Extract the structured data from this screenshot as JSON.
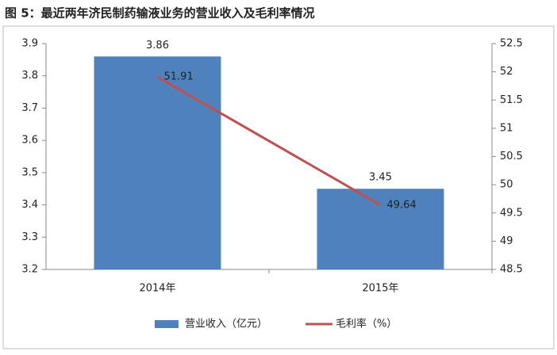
{
  "chart_data": {
    "type": "bar",
    "title": "图 5：最近两年济民制药输液业务的营业收入及毛利率情况",
    "categories": [
      "2014年",
      "2015年"
    ],
    "series": [
      {
        "name": "营业收入（亿元）",
        "type": "bar",
        "color": "#4f81bd",
        "values": [
          3.86,
          3.45
        ]
      },
      {
        "name": "毛利率（%）",
        "type": "line",
        "axis": "y2",
        "color": "#c0504d",
        "values": [
          51.91,
          49.64
        ]
      }
    ],
    "ylim": [
      3.2,
      3.9
    ],
    "yticks": [
      3.2,
      3.3,
      3.4,
      3.5,
      3.6,
      3.7,
      3.8,
      3.9
    ],
    "y2lim": [
      48.5,
      52.5
    ],
    "y2ticks": [
      48.5,
      49,
      49.5,
      50,
      50.5,
      51,
      51.5,
      52,
      52.5
    ],
    "grid": false,
    "legend": "bottom"
  }
}
